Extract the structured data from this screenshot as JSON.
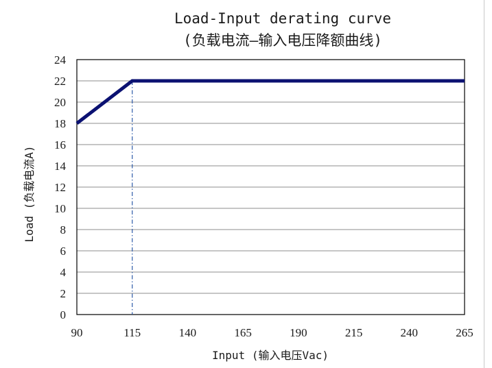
{
  "chart_data": {
    "type": "line",
    "title": "Load-Input derating curve",
    "subtitle": "(负载电流—输入电压降额曲线)",
    "xlabel": "Input  (输入电压Vac)",
    "ylabel": "Load (负载电流A)",
    "xlim": [
      90,
      265
    ],
    "ylim": [
      0,
      24
    ],
    "x_ticks": [
      "90",
      "115",
      "140",
      "165",
      "190",
      "215",
      "240",
      "265"
    ],
    "y_ticks": [
      "0",
      "2",
      "4",
      "6",
      "8",
      "10",
      "12",
      "14",
      "16",
      "18",
      "20",
      "22",
      "24"
    ],
    "grid": true,
    "series": [
      {
        "x": [
          90,
          115,
          265
        ],
        "y": [
          18,
          22,
          22
        ]
      }
    ],
    "reference_line": {
      "x": 115
    },
    "colors": {
      "line": "#0b1172",
      "grid": "#8c8c8c",
      "axis": "#000000",
      "reference": "#2c5aa8"
    }
  }
}
